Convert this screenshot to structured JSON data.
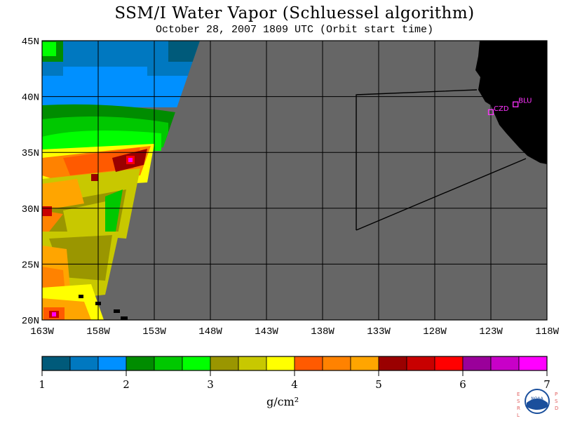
{
  "title": "SSM/I Water Vapor (Schluessel algorithm)",
  "subtitle": "October 28, 2007  1809 UTC  (Orbit start time)",
  "map": {
    "lat_labels": [
      "45N",
      "40N",
      "35N",
      "30N",
      "25N",
      "20N"
    ],
    "lat_values": [
      45,
      40,
      35,
      30,
      25,
      20
    ],
    "lon_labels": [
      "163W",
      "158W",
      "153W",
      "148W",
      "143W",
      "138W",
      "133W",
      "128W",
      "123W",
      "118W"
    ],
    "lon_values": [
      -163,
      -158,
      -153,
      -148,
      -143,
      -138,
      -133,
      -128,
      -123,
      -118
    ],
    "lon_range": [
      -163,
      -118
    ],
    "lat_range": [
      20,
      45
    ],
    "background_color": "#666666",
    "land_color": "#000000",
    "stations": [
      {
        "code": "CZD",
        "lon": -123.0,
        "lat": 38.6,
        "color": "#ff33ff"
      },
      {
        "code": "BLU",
        "lon": -120.8,
        "lat": 39.3,
        "color": "#ff33ff"
      }
    ]
  },
  "colorbar": {
    "unit": "g/cm²",
    "tick_labels": [
      "1",
      "2",
      "3",
      "4",
      "5",
      "6",
      "7"
    ],
    "range": [
      1,
      7
    ],
    "colors": [
      "#005a7a",
      "#0078c0",
      "#0090ff",
      "#008c00",
      "#00c800",
      "#00ff00",
      "#9a9600",
      "#c8c800",
      "#ffff00",
      "#ff5a00",
      "#ff8200",
      "#ffa500",
      "#9a0000",
      "#c80000",
      "#ff0000",
      "#9a009a",
      "#c800c8",
      "#ff00ff"
    ]
  },
  "logo": {
    "left_text": [
      "E",
      "S",
      "R",
      "L"
    ],
    "right_text": [
      "P",
      "S",
      "D"
    ],
    "center_text": "NOAA"
  }
}
